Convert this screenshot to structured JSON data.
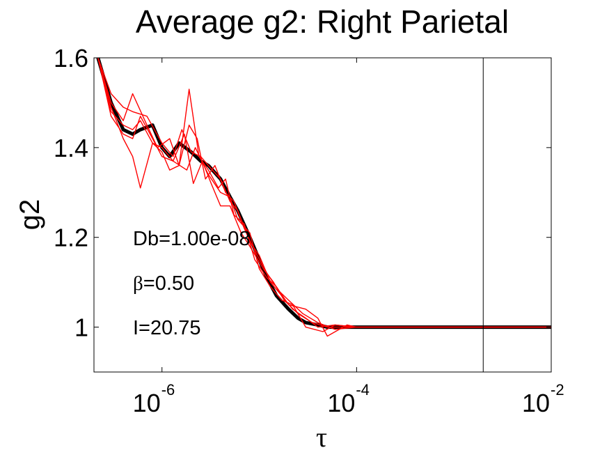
{
  "chart_data": {
    "type": "line",
    "title": "Average g2: Right Parietal",
    "xlabel": "τ",
    "ylabel": "g2",
    "x_scale": "log",
    "xlim": [
      2e-07,
      0.01
    ],
    "ylim": [
      0.9,
      1.6
    ],
    "x_ticks": [
      {
        "value": 1e-06,
        "base": "10",
        "exponent": "-6"
      },
      {
        "value": 0.0001,
        "base": "10",
        "exponent": "-4"
      },
      {
        "value": 0.01,
        "base": "10",
        "exponent": "-2"
      }
    ],
    "y_ticks": [
      {
        "value": 1.0,
        "label": "1"
      },
      {
        "value": 1.2,
        "label": "1.2"
      },
      {
        "value": 1.4,
        "label": "1.4"
      },
      {
        "value": 1.6,
        "label": "1.6"
      }
    ],
    "grid": false,
    "vertical_line_x": 0.002,
    "annotations": {
      "db": "Db=1.00e-08",
      "beta_symbol": "β",
      "beta_value": "=0.50",
      "intensity": "I=20.75"
    },
    "series_style": {
      "average_color": "#000000",
      "individual_color": "#ff0000"
    },
    "series": [
      {
        "role": "average",
        "x": [
          2.2e-07,
          3e-07,
          4e-07,
          5e-07,
          6e-07,
          8e-07,
          1e-06,
          1.2e-06,
          1.5e-06,
          2e-06,
          2.5e-06,
          3e-06,
          4e-06,
          5e-06,
          6e-06,
          8e-06,
          1e-05,
          1.2e-05,
          1.5e-05,
          2e-05,
          2.5e-05,
          3e-05,
          4e-05,
          5e-05,
          7e-05,
          0.0001,
          0.0002,
          0.0005,
          0.001,
          0.002,
          0.005,
          0.01
        ],
        "y": [
          1.6,
          1.5,
          1.44,
          1.43,
          1.44,
          1.45,
          1.4,
          1.38,
          1.41,
          1.39,
          1.37,
          1.36,
          1.33,
          1.29,
          1.26,
          1.2,
          1.15,
          1.11,
          1.07,
          1.04,
          1.02,
          1.01,
          1.005,
          1.0,
          1.0,
          1.0,
          1.0,
          1.0,
          1.0,
          1.0,
          1.0,
          1.0
        ]
      },
      {
        "role": "individual",
        "x": [
          2.2e-07,
          3e-07,
          4e-07,
          5e-07,
          7e-07,
          1e-06,
          1.3e-06,
          1.6e-06,
          2e-06,
          2.5e-06,
          3e-06,
          4e-06,
          5e-06,
          6e-06,
          8e-06,
          1e-05,
          1.3e-05,
          1.7e-05,
          2.2e-05,
          3e-05,
          4e-05,
          6e-05,
          0.0001,
          0.0003,
          0.001,
          0.003,
          0.01
        ],
        "y": [
          1.6,
          1.52,
          1.49,
          1.48,
          1.47,
          1.41,
          1.38,
          1.44,
          1.39,
          1.38,
          1.36,
          1.33,
          1.28,
          1.26,
          1.19,
          1.16,
          1.1,
          1.07,
          1.04,
          1.02,
          1.0,
          1.005,
          1.0,
          1.0,
          1.0,
          1.0,
          1.0
        ]
      },
      {
        "role": "individual",
        "x": [
          2.2e-07,
          3e-07,
          4e-07,
          5e-07,
          6e-07,
          8e-07,
          1e-06,
          1.3e-06,
          1.8e-06,
          2.2e-06,
          3e-06,
          4e-06,
          5e-06,
          6e-06,
          8e-06,
          1e-05,
          1.3e-05,
          1.7e-05,
          2.2e-05,
          3e-05,
          4.5e-05,
          6e-05,
          0.0001,
          0.0003,
          0.001,
          0.003,
          0.01
        ],
        "y": [
          1.6,
          1.49,
          1.42,
          1.38,
          1.31,
          1.41,
          1.4,
          1.37,
          1.35,
          1.4,
          1.34,
          1.3,
          1.29,
          1.24,
          1.21,
          1.13,
          1.09,
          1.06,
          1.05,
          1.0,
          0.99,
          1.005,
          1.0,
          1.0,
          1.0,
          1.0,
          1.0
        ]
      },
      {
        "role": "individual",
        "x": [
          2.2e-07,
          3e-07,
          4e-07,
          5e-07,
          7e-07,
          9e-07,
          1.2e-06,
          1.5e-06,
          1.9e-06,
          2.3e-06,
          2.8e-06,
          3.5e-06,
          4.5e-06,
          5.5e-06,
          7e-06,
          9e-06,
          1.2e-05,
          1.6e-05,
          2e-05,
          2.8e-05,
          4e-05,
          6e-05,
          0.0001,
          0.0003,
          0.001,
          0.003,
          0.01
        ],
        "y": [
          1.6,
          1.5,
          1.46,
          1.52,
          1.45,
          1.4,
          1.42,
          1.36,
          1.45,
          1.42,
          1.33,
          1.36,
          1.3,
          1.28,
          1.22,
          1.17,
          1.12,
          1.08,
          1.06,
          1.03,
          1.01,
          0.995,
          1.0,
          1.0,
          1.0,
          1.0,
          1.0
        ]
      },
      {
        "role": "individual",
        "x": [
          2.2e-07,
          3e-07,
          4e-07,
          5e-07,
          6e-07,
          8e-07,
          1e-06,
          1.2e-06,
          1.5e-06,
          1.9e-06,
          2.4e-06,
          3e-06,
          3.8e-06,
          4.5e-06,
          5.5e-06,
          7e-06,
          9e-06,
          1.2e-05,
          1.5e-05,
          2e-05,
          3e-05,
          4e-05,
          5e-05,
          8e-05,
          0.0001,
          0.0003,
          0.001,
          0.003,
          0.01
        ],
        "y": [
          1.6,
          1.48,
          1.45,
          1.44,
          1.46,
          1.41,
          1.39,
          1.35,
          1.36,
          1.53,
          1.38,
          1.35,
          1.31,
          1.33,
          1.25,
          1.23,
          1.15,
          1.11,
          1.09,
          1.05,
          1.04,
          1.02,
          0.98,
          1.005,
          1.0,
          1.0,
          1.0,
          1.0,
          1.0
        ]
      },
      {
        "role": "individual",
        "x": [
          2.2e-07,
          3e-07,
          4e-07,
          5e-07,
          6e-07,
          8e-07,
          1e-06,
          1.3e-06,
          1.7e-06,
          2.1e-06,
          2.6e-06,
          3.2e-06,
          4e-06,
          5e-06,
          6.5e-06,
          8e-06,
          1.1e-05,
          1.4e-05,
          1.8e-05,
          2.5e-05,
          3.5e-05,
          5e-05,
          0.0001,
          0.0003,
          0.001,
          0.003,
          0.01
        ],
        "y": [
          1.6,
          1.47,
          1.43,
          1.42,
          1.47,
          1.42,
          1.38,
          1.37,
          1.43,
          1.32,
          1.37,
          1.32,
          1.27,
          1.27,
          1.21,
          1.18,
          1.13,
          1.1,
          1.06,
          1.03,
          1.01,
          1.0,
          1.0,
          1.0,
          1.0,
          1.0,
          1.0
        ]
      }
    ]
  }
}
